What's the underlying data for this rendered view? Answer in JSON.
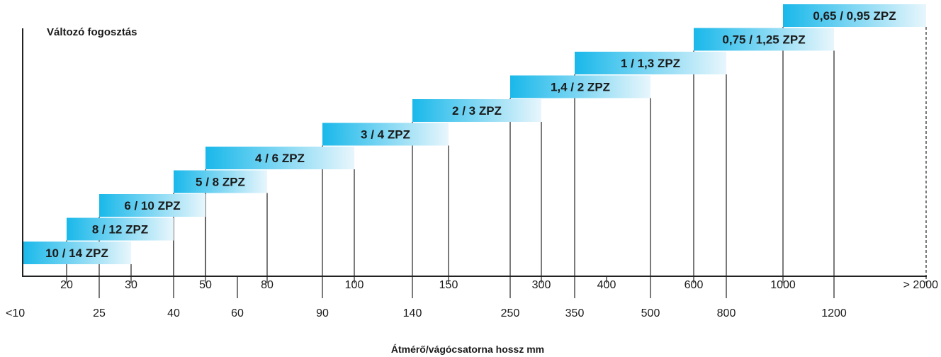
{
  "chart_data": {
    "type": "bar",
    "subtype": "horizontal-range",
    "title": "Változó fogosztás",
    "xlabel": "Átmérő/vágócsatorna hossz mm",
    "x_scale": "categorical-ordinal",
    "ticks": [
      "<10",
      "20",
      "25",
      "30",
      "40",
      "50",
      "60",
      "80",
      "90",
      "100",
      "140",
      "150",
      "250",
      "300",
      "350",
      "400",
      "500",
      "600",
      "800",
      "1000",
      "1200",
      "> 2000"
    ],
    "bars": [
      {
        "label": "10 / 14 ZPZ",
        "from": "<10",
        "to": "30"
      },
      {
        "label": "8 / 12 ZPZ",
        "from": "20",
        "to": "40"
      },
      {
        "label": "6 / 10 ZPZ",
        "from": "25",
        "to": "50"
      },
      {
        "label": "5 / 8 ZPZ",
        "from": "40",
        "to": "80"
      },
      {
        "label": "4 / 6 ZPZ",
        "from": "50",
        "to": "100"
      },
      {
        "label": "3 / 4 ZPZ",
        "from": "90",
        "to": "150"
      },
      {
        "label": "2 / 3 ZPZ",
        "from": "140",
        "to": "300"
      },
      {
        "label": "1,4 / 2 ZPZ",
        "from": "250",
        "to": "500"
      },
      {
        "label": "1 / 1,3 ZPZ",
        "from": "350",
        "to": "800"
      },
      {
        "label": "0,75 / 1,25 ZPZ",
        "from": "600",
        "to": "1200"
      },
      {
        "label": "0,65 / 0,95 ZPZ",
        "from": "1000",
        "to": "> 2000"
      }
    ],
    "colors": {
      "bar_start": "#19b8ea",
      "bar_end": "#e8f6fc",
      "line": "#222222"
    },
    "grid": false,
    "legend": "none"
  }
}
